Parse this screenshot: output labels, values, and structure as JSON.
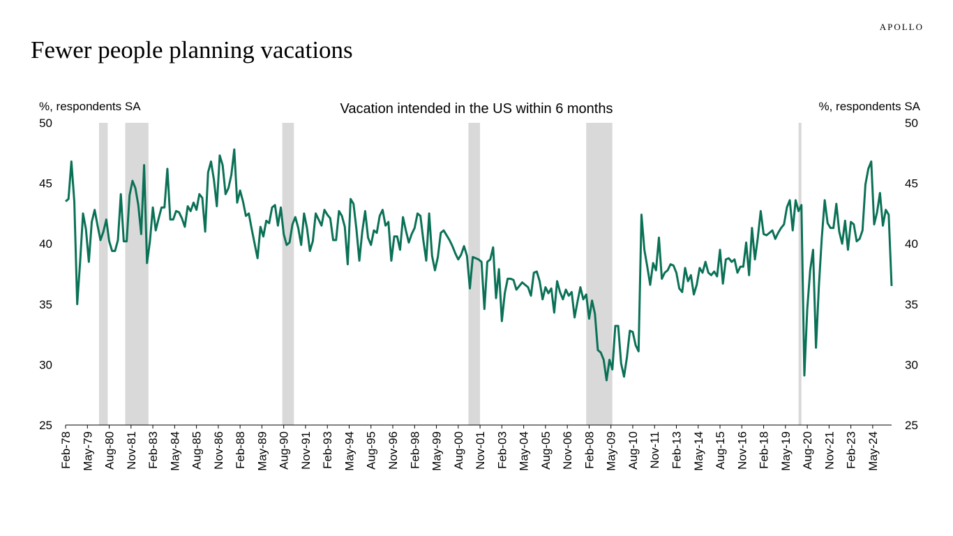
{
  "brand": "APOLLO",
  "title": "Fewer people planning vacations",
  "chart_data": {
    "type": "line",
    "subtitle": "Vacation intended in the US within 6 months",
    "ylabel_left": "%, respondents SA",
    "ylabel_right": "%, respondents SA",
    "ylim": [
      25,
      50
    ],
    "yticks": [
      25,
      30,
      35,
      40,
      45,
      50
    ],
    "x_start": "Feb-78",
    "x_step_months": 2,
    "xtick_labels": [
      "Feb-78",
      "May-79",
      "Aug-80",
      "Nov-81",
      "Feb-83",
      "May-84",
      "Aug-85",
      "Nov-86",
      "Feb-88",
      "May-89",
      "Aug-90",
      "Nov-91",
      "Feb-93",
      "May-94",
      "Aug-95",
      "Nov-96",
      "Feb-98",
      "May-99",
      "Aug-00",
      "Nov-01",
      "Feb-03",
      "May-04",
      "Aug-05",
      "Nov-06",
      "Feb-08",
      "May-09",
      "Aug-10",
      "Nov-11",
      "Feb-13",
      "May-14",
      "Aug-15",
      "Nov-16",
      "Feb-18",
      "May-19",
      "Aug-20",
      "Nov-21",
      "Feb-23",
      "May-24"
    ],
    "recessions": [
      [
        "Jan-80",
        "Jul-80"
      ],
      [
        "Jul-81",
        "Nov-82"
      ],
      [
        "Jul-90",
        "Mar-91"
      ],
      [
        "Mar-01",
        "Nov-01"
      ],
      [
        "Dec-07",
        "Jun-09"
      ],
      [
        "Feb-20",
        "Apr-20"
      ]
    ],
    "grid": false,
    "color": "#0a7156",
    "series": [
      {
        "values": [
          43.5,
          43.7,
          46.8,
          43.5,
          35.0,
          38.5,
          42.5,
          41.2,
          38.5,
          41.8,
          42.8,
          41.5,
          40.3,
          41.0,
          42.0,
          40.2,
          39.4,
          39.4,
          40.3,
          44.1,
          40.2,
          40.2,
          44.0,
          45.2,
          44.6,
          43.2,
          40.8,
          46.5,
          38.4,
          40.2,
          43.0,
          41.1,
          42.1,
          43.0,
          43.0,
          46.2,
          42.0,
          42.0,
          42.7,
          42.6,
          42.1,
          41.4,
          43.1,
          42.7,
          43.4,
          42.8,
          44.1,
          43.8,
          41.0,
          45.9,
          46.8,
          45.3,
          43.1,
          47.3,
          46.5,
          44.1,
          44.6,
          45.7,
          47.8,
          43.4,
          44.4,
          43.5,
          42.3,
          42.5,
          41.2,
          40.0,
          38.8,
          41.4,
          40.6,
          41.9,
          41.7,
          43.0,
          43.2,
          41.5,
          43.0,
          40.8,
          39.9,
          40.1,
          41.6,
          42.2,
          41.3,
          39.9,
          42.5,
          41.3,
          39.4,
          40.2,
          42.5,
          42.0,
          41.5,
          42.8,
          42.4,
          42.1,
          40.3,
          40.3,
          42.7,
          42.3,
          41.4,
          38.3,
          43.7,
          43.3,
          41.2,
          38.6,
          41.0,
          42.7,
          40.5,
          39.9,
          41.1,
          40.9,
          42.3,
          42.8,
          41.5,
          41.8,
          38.6,
          40.6,
          40.6,
          39.5,
          42.2,
          41.1,
          40.1,
          40.8,
          41.3,
          42.5,
          42.3,
          40.3,
          38.6,
          42.5,
          39.0,
          37.8,
          38.9,
          40.9,
          41.1,
          40.7,
          40.3,
          39.8,
          39.2,
          38.7,
          39.1,
          39.8,
          39.0,
          36.3,
          38.9,
          38.8,
          38.7,
          38.5,
          34.6,
          38.5,
          38.7,
          39.7,
          35.5,
          37.9,
          33.6,
          35.9,
          37.1,
          37.1,
          37.0,
          36.2,
          36.5,
          36.8,
          36.6,
          36.4,
          35.7,
          37.6,
          37.7,
          36.9,
          35.4,
          36.4,
          35.9,
          36.3,
          34.3,
          36.9,
          36.0,
          35.4,
          36.2,
          35.7,
          36.0,
          33.9,
          35.2,
          36.4,
          35.4,
          35.8,
          33.8,
          35.3,
          34.2,
          31.2,
          31.0,
          30.4,
          28.7,
          30.4,
          29.6,
          33.2,
          33.2,
          30.1,
          29.0,
          30.6,
          32.8,
          32.7,
          31.6,
          31.1,
          42.4,
          39.5,
          38.1,
          36.6,
          38.4,
          37.8,
          40.5,
          37.1,
          37.6,
          37.8,
          38.3,
          38.2,
          37.6,
          36.3,
          36.0,
          38.0,
          36.9,
          37.4,
          35.8,
          36.6,
          38.0,
          37.6,
          38.5,
          37.6,
          37.4,
          37.7,
          37.3,
          39.5,
          36.7,
          38.7,
          38.8,
          38.5,
          38.7,
          37.6,
          38.1,
          38.1,
          40.1,
          37.4,
          41.3,
          38.7,
          40.5,
          42.7,
          40.8,
          40.7,
          40.9,
          41.1,
          40.4,
          40.9,
          41.3,
          41.6,
          43.0,
          43.6,
          41.1,
          43.6,
          42.7,
          43.2,
          29.1,
          34.6,
          37.8,
          39.5,
          31.4,
          36.5,
          40.5,
          43.6,
          41.7,
          41.3,
          41.3,
          43.3,
          41.0,
          40.0,
          41.9,
          39.5,
          41.8,
          41.6,
          40.2,
          40.4,
          41.1,
          44.9,
          46.2,
          46.8,
          41.6,
          42.6,
          44.2,
          41.5,
          42.8,
          42.4,
          36.5
        ]
      }
    ]
  }
}
